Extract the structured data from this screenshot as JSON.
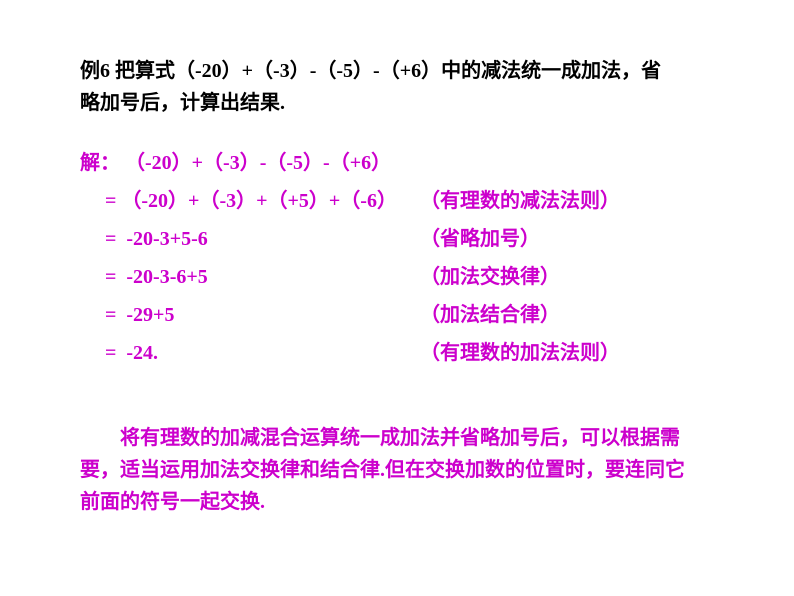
{
  "problem": {
    "line1": "例6  把算式（-20）+（-3）-（-5）-（+6）中的减法统一成加法，省",
    "line2": "略加号后，计算出结果."
  },
  "solution": {
    "label": "解：",
    "steps": [
      {
        "left": "（-20）+（-3）-（-5）-（+6）",
        "right": ""
      },
      {
        "left": "= （-20）+（-3）+（+5）+（-6）",
        "right": "（有理数的减法法则）"
      },
      {
        "left": "=  -20-3+5-6",
        "right": "（省略加号）"
      },
      {
        "left": "=  -20-3-6+5",
        "right": "（加法交换律）"
      },
      {
        "left": "=  -29+5",
        "right": "（加法结合律）"
      },
      {
        "left": "=  -24.",
        "right": "（有理数的加法法则）"
      }
    ]
  },
  "conclusion": {
    "line1": "将有理数的加减混合运算统一成加法并省略加号后，可以根据需",
    "line2": "要，适当运用加法交换律和结合律.但在交换加数的位置时，要连同它",
    "line3": "前面的符号一起交换."
  },
  "colors": {
    "text_black": "#000000",
    "text_magenta": "#cc00cc",
    "background": "#ffffff"
  },
  "fonts": {
    "family": "SimSun",
    "size_pt": 15,
    "weight": "bold"
  }
}
